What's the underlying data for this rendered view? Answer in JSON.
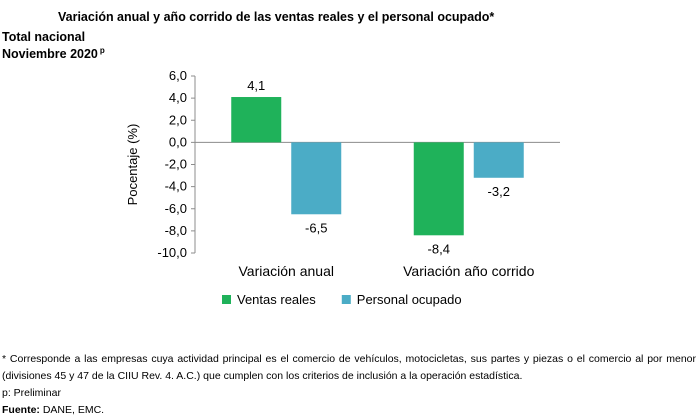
{
  "header": {
    "title": "Variación anual y año corrido de las ventas reales y el personal ocupado*",
    "subtitle1": "Total nacional",
    "subtitle2": "Noviembre 2020",
    "subtitle2_sup": "p"
  },
  "chart_data": {
    "type": "bar",
    "categories": [
      "Variación anual",
      "Variación año corrido"
    ],
    "series": [
      {
        "name": "Ventas reales",
        "color": "#1fb25a",
        "values": [
          4.1,
          -8.4
        ],
        "labels": [
          "4,1",
          "-8,4"
        ]
      },
      {
        "name": "Personal ocupado",
        "color": "#4bacc6",
        "values": [
          -6.5,
          -3.2
        ],
        "labels": [
          "-6,5",
          "-3,2"
        ]
      }
    ],
    "ylabel": "Pocentaje (%)",
    "ylim": [
      -10,
      6
    ],
    "yticks": [
      6,
      4,
      2,
      0,
      -2,
      -4,
      -6,
      -8,
      -10
    ],
    "ytick_labels": [
      "6,0",
      "4,0",
      "2,0",
      "0,0",
      "-2,0",
      "-4,0",
      "-6,0",
      "-8,0",
      "-10,0"
    ],
    "grid": false,
    "legend_position": "bottom"
  },
  "footer": {
    "note": "* Corresponde a las empresas cuya actividad principal es el comercio de vehículos, motocicletas, sus partes y piezas o el comercio al por menor (divisiones 45 y 47 de la CIIU Rev. 4. A.C.) que cumplen con los criterios de inclusión a la operación estadística.",
    "prelim": "p: Preliminar",
    "source_label": "Fuente:",
    "source_text": "DANE, EMC."
  }
}
